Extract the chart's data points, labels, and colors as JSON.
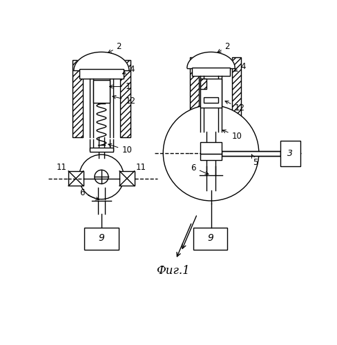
{
  "bg_color": "#ffffff",
  "line_color": "#000000",
  "title": "Фиг.1",
  "lw": 1.0,
  "labels": {
    "2_left": "2",
    "2_right": "2",
    "4_left": "4",
    "4_right": "4",
    "1": "1",
    "12_left": "12",
    "12_right": "12",
    "10_left": "10",
    "10_right": "10",
    "11_left": "11",
    "11_right": "11",
    "6_left": "6",
    "6_right": "6",
    "9_left": "9",
    "9_right": "9",
    "5": "5",
    "3": "3"
  }
}
